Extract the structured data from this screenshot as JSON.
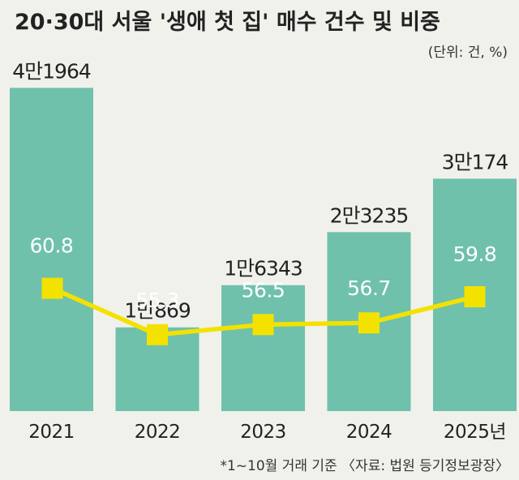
{
  "chart_data": {
    "type": "bar",
    "title": "20·30대 서울 '생애 첫 집' 매수 건수 및 비중",
    "unit_note": "(단위: 건, %)",
    "categories": [
      "2021",
      "2022",
      "2023",
      "2024",
      "2025년"
    ],
    "series": [
      {
        "type": "bar",
        "values": [
          41964,
          10869,
          16343,
          23235,
          30174
        ],
        "labels": [
          "4만1964",
          "1만869",
          "1만6343",
          "2만3235",
          "3만174"
        ]
      },
      {
        "type": "line",
        "values": [
          60.8,
          55.3,
          56.5,
          56.7,
          59.8
        ],
        "labels": [
          "60.8",
          "55.3",
          "56.5",
          "56.7",
          "59.8"
        ]
      }
    ],
    "footnote": "*1~10월 거래 기준 〈자료: 법원 등기정보광장〉",
    "colors": {
      "bar": "#6fc1ab",
      "line": "#f3e200",
      "marker": "#f3e200",
      "background": "#f1f1ec"
    }
  }
}
